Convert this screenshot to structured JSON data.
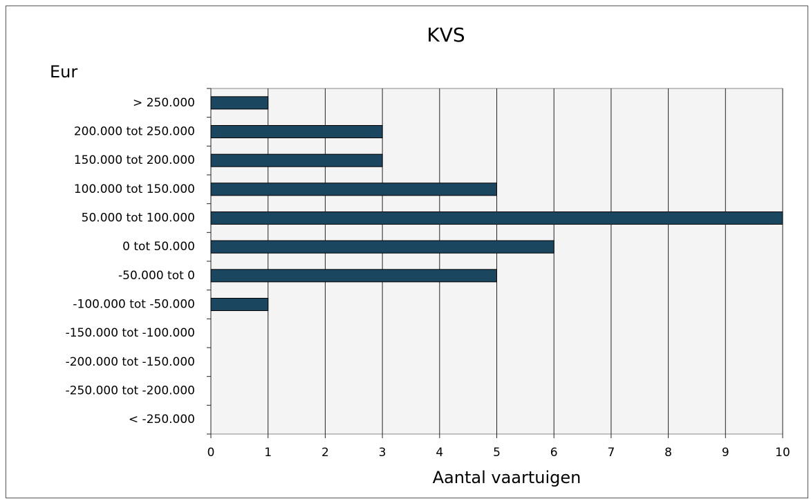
{
  "chart_data": {
    "type": "barh",
    "title": "KVS",
    "ylabel": "Eur",
    "xlabel": "Aantal vaartuigen",
    "categories": [
      "> 250.000",
      "200.000 tot 250.000",
      "150.000 tot 200.000",
      "100.000 tot 150.000",
      "50.000 tot 100.000",
      "0 tot 50.000",
      "-50.000 tot 0",
      "-100.000 tot -50.000",
      "-150.000 tot -100.000",
      "-200.000 tot -150.000",
      "-250.000 tot -200.000",
      "< -250.000"
    ],
    "values": [
      1,
      3,
      3,
      5,
      10,
      6,
      5,
      1,
      0,
      0,
      0,
      0
    ],
    "color": "#1b4660",
    "xlim": [
      0,
      10
    ],
    "xticks": [
      0,
      1,
      2,
      3,
      4,
      5,
      6,
      7,
      8,
      9,
      10
    ],
    "grid": true
  }
}
